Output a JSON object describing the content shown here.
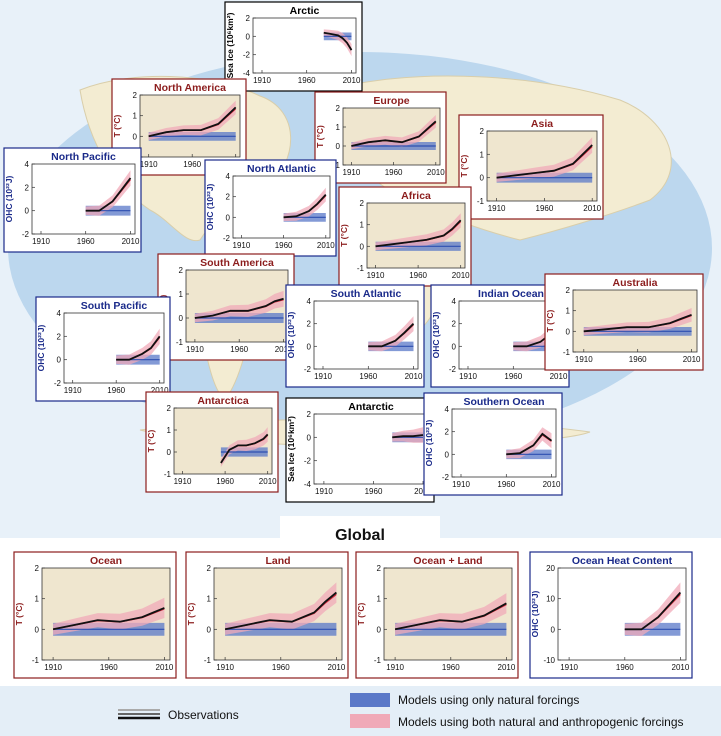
{
  "global_title": "Global",
  "legend": {
    "observations": "Observations",
    "natural": "Models using only natural forcings",
    "both": "Models using both natural and anthropogenic forcings"
  },
  "colors": {
    "ocean": "#bcd7ee",
    "land": "#f3ecd2",
    "temp_frame": "#8c1d1d",
    "ohc_frame": "#1a2a8a",
    "ice_frame": "#000000",
    "panel_bg_temp": "#efe6cf",
    "natural_band": "#5a78c8",
    "both_band": "#f0a9b8",
    "obs": "#111111"
  },
  "chart_data": [
    {
      "id": "arctic",
      "title": "Arctic",
      "type": "line",
      "ylabel": "Sea Ice (10⁶km²)",
      "yticks": [
        "2",
        "0",
        "-2",
        "-4"
      ],
      "ylim": [
        -4,
        2
      ],
      "xticks": [
        "1910",
        "1960",
        "2010"
      ],
      "series": [
        {
          "name": "obs",
          "x": [
            1979,
            1985,
            1990,
            1995,
            2000,
            2005,
            2010
          ],
          "values": [
            0.4,
            0.3,
            0.2,
            0.1,
            -0.2,
            -0.7,
            -1.5
          ]
        }
      ]
    },
    {
      "id": "north-america",
      "title": "North America",
      "type": "line",
      "ylabel": "T (°C)",
      "yticks": [
        "2",
        "1",
        "0",
        "-1"
      ],
      "ylim": [
        -1,
        2
      ],
      "xticks": [
        "1910",
        "1960",
        "2010"
      ],
      "series": [
        {
          "name": "obs",
          "x": [
            1910,
            1930,
            1950,
            1970,
            1990,
            2000,
            2010
          ],
          "values": [
            0.0,
            0.2,
            0.3,
            0.3,
            0.6,
            1.0,
            1.4
          ]
        }
      ]
    },
    {
      "id": "europe",
      "title": "Europe",
      "type": "line",
      "ylabel": "T (°C)",
      "yticks": [
        "2",
        "1",
        "0",
        "-1"
      ],
      "ylim": [
        -1,
        2
      ],
      "xticks": [
        "1910",
        "1960",
        "2010"
      ],
      "series": [
        {
          "name": "obs",
          "x": [
            1910,
            1930,
            1950,
            1970,
            1990,
            2000,
            2010
          ],
          "values": [
            0.0,
            0.2,
            0.3,
            0.2,
            0.5,
            0.9,
            1.3
          ]
        }
      ]
    },
    {
      "id": "asia",
      "title": "Asia",
      "type": "line",
      "ylabel": "T (°C)",
      "yticks": [
        "2",
        "1",
        "0",
        "-1"
      ],
      "ylim": [
        -1,
        2
      ],
      "xticks": [
        "1910",
        "1960",
        "2010"
      ],
      "series": [
        {
          "name": "obs",
          "x": [
            1910,
            1930,
            1950,
            1970,
            1990,
            2000,
            2010
          ],
          "values": [
            0.0,
            0.1,
            0.2,
            0.3,
            0.6,
            1.0,
            1.4
          ]
        }
      ]
    },
    {
      "id": "north-pacific",
      "title": "North Pacific",
      "type": "line",
      "ylabel": "OHC (10²²J)",
      "yticks": [
        "4",
        "2",
        "0",
        "-2"
      ],
      "ylim": [
        -2,
        4
      ],
      "xticks": [
        "1910",
        "1960",
        "2010"
      ],
      "series": [
        {
          "name": "obs",
          "x": [
            1960,
            1975,
            1990,
            2000,
            2010
          ],
          "values": [
            0.0,
            0.0,
            0.8,
            1.8,
            2.8
          ]
        }
      ]
    },
    {
      "id": "north-atlantic",
      "title": "North Atlantic",
      "type": "line",
      "ylabel": "OHC (10²²J)",
      "yticks": [
        "4",
        "2",
        "0",
        "-2"
      ],
      "ylim": [
        -2,
        4
      ],
      "xticks": [
        "1910",
        "1960",
        "2010"
      ],
      "series": [
        {
          "name": "obs",
          "x": [
            1960,
            1975,
            1990,
            2000,
            2010
          ],
          "values": [
            0.0,
            0.1,
            0.6,
            1.3,
            2.2
          ]
        }
      ]
    },
    {
      "id": "africa",
      "title": "Africa",
      "type": "line",
      "ylabel": "T (°C)",
      "yticks": [
        "2",
        "1",
        "0",
        "-1"
      ],
      "ylim": [
        -1,
        2
      ],
      "xticks": [
        "1910",
        "1960",
        "2010"
      ],
      "series": [
        {
          "name": "obs",
          "x": [
            1910,
            1930,
            1950,
            1970,
            1990,
            2000,
            2010
          ],
          "values": [
            0.0,
            0.1,
            0.2,
            0.3,
            0.5,
            0.8,
            1.2
          ]
        }
      ]
    },
    {
      "id": "south-america",
      "title": "South America",
      "type": "line",
      "ylabel": "T (°C)",
      "yticks": [
        "2",
        "1",
        "0",
        "-1"
      ],
      "ylim": [
        -1,
        2
      ],
      "xticks": [
        "1910",
        "1960",
        "2010"
      ],
      "series": [
        {
          "name": "obs",
          "x": [
            1910,
            1930,
            1950,
            1970,
            1990,
            2000,
            2010
          ],
          "values": [
            0.0,
            0.1,
            0.3,
            0.3,
            0.5,
            0.7,
            0.8
          ]
        }
      ]
    },
    {
      "id": "south-pacific",
      "title": "South Pacific",
      "type": "line",
      "ylabel": "OHC (10²²J)",
      "yticks": [
        "4",
        "2",
        "0",
        "-2"
      ],
      "ylim": [
        -2,
        4
      ],
      "xticks": [
        "1910",
        "1960",
        "2010"
      ],
      "series": [
        {
          "name": "obs",
          "x": [
            1960,
            1975,
            1990,
            2000,
            2010
          ],
          "values": [
            0.0,
            0.0,
            0.5,
            1.0,
            2.0
          ]
        }
      ]
    },
    {
      "id": "south-atlantic",
      "title": "South Atlantic",
      "type": "line",
      "ylabel": "OHC (10²²J)",
      "yticks": [
        "4",
        "2",
        "0",
        "-2"
      ],
      "ylim": [
        -2,
        4
      ],
      "xticks": [
        "1910",
        "1960",
        "2010"
      ],
      "series": [
        {
          "name": "obs",
          "x": [
            1960,
            1975,
            1990,
            2000,
            2010
          ],
          "values": [
            0.0,
            0.0,
            0.5,
            1.2,
            2.0
          ]
        }
      ]
    },
    {
      "id": "indian-ocean",
      "title": "Indian Ocean",
      "type": "line",
      "ylabel": "OHC (10²²J)",
      "yticks": [
        "4",
        "2",
        "0",
        "-2"
      ],
      "ylim": [
        -2,
        4
      ],
      "xticks": [
        "1910",
        "1960",
        "2010"
      ],
      "series": [
        {
          "name": "obs",
          "x": [
            1960,
            1975,
            1990,
            2000,
            2010
          ],
          "values": [
            0.0,
            0.0,
            0.4,
            1.0,
            1.8
          ]
        }
      ]
    },
    {
      "id": "australia",
      "title": "Australia",
      "type": "line",
      "ylabel": "T (°C)",
      "yticks": [
        "2",
        "1",
        "0",
        "-1"
      ],
      "ylim": [
        -1,
        2
      ],
      "xticks": [
        "1910",
        "1960",
        "2010"
      ],
      "series": [
        {
          "name": "obs",
          "x": [
            1910,
            1930,
            1950,
            1970,
            1990,
            2000,
            2010
          ],
          "values": [
            0.0,
            0.1,
            0.2,
            0.2,
            0.4,
            0.6,
            0.8
          ]
        }
      ]
    },
    {
      "id": "antarctica",
      "title": "Antarctica",
      "type": "line",
      "ylabel": "T (°C)",
      "yticks": [
        "2",
        "1",
        "0",
        "-1"
      ],
      "ylim": [
        -1,
        2
      ],
      "xticks": [
        "1910",
        "1960",
        "2010"
      ],
      "series": [
        {
          "name": "obs",
          "x": [
            1955,
            1965,
            1975,
            1985,
            1995,
            2005,
            2010
          ],
          "values": [
            -0.5,
            0.1,
            0.3,
            0.3,
            0.4,
            0.6,
            0.8
          ]
        }
      ]
    },
    {
      "id": "antarctic",
      "title": "Antarctic",
      "type": "line",
      "ylabel": "Sea Ice (10⁶km²)",
      "yticks": [
        "2",
        "0",
        "-2",
        "-4"
      ],
      "ylim": [
        -4,
        2
      ],
      "xticks": [
        "1910",
        "1960",
        "2010"
      ],
      "series": [
        {
          "name": "obs",
          "x": [
            1979,
            1990,
            2000,
            2010
          ],
          "values": [
            0.0,
            0.1,
            0.1,
            0.2
          ]
        }
      ]
    },
    {
      "id": "southern-ocean",
      "title": "Southern Ocean",
      "type": "line",
      "ylabel": "OHC (10²²J)",
      "yticks": [
        "4",
        "2",
        "0",
        "-2"
      ],
      "ylim": [
        -2,
        4
      ],
      "xticks": [
        "1910",
        "1960",
        "2010"
      ],
      "series": [
        {
          "name": "obs",
          "x": [
            1960,
            1975,
            1990,
            2000,
            2010
          ],
          "values": [
            0.0,
            0.1,
            0.8,
            1.8,
            1.2
          ]
        }
      ]
    },
    {
      "id": "global-ocean",
      "title": "Ocean",
      "type": "line",
      "ylabel": "T (°C)",
      "yticks": [
        "2",
        "1",
        "0",
        "-1"
      ],
      "ylim": [
        -1,
        2
      ],
      "xticks": [
        "1910",
        "1960",
        "2010"
      ],
      "series": [
        {
          "name": "obs",
          "x": [
            1910,
            1930,
            1950,
            1970,
            1990,
            2000,
            2010
          ],
          "values": [
            0.0,
            0.15,
            0.3,
            0.25,
            0.4,
            0.55,
            0.7
          ]
        }
      ]
    },
    {
      "id": "global-land",
      "title": "Land",
      "type": "line",
      "ylabel": "T (°C)",
      "yticks": [
        "2",
        "1",
        "0",
        "-1"
      ],
      "ylim": [
        -1,
        2
      ],
      "xticks": [
        "1910",
        "1960",
        "2010"
      ],
      "series": [
        {
          "name": "obs",
          "x": [
            1910,
            1930,
            1950,
            1970,
            1990,
            2000,
            2010
          ],
          "values": [
            0.0,
            0.15,
            0.3,
            0.25,
            0.55,
            0.9,
            1.2
          ]
        }
      ]
    },
    {
      "id": "global-ocean-land",
      "title": "Ocean + Land",
      "type": "line",
      "ylabel": "T (°C)",
      "yticks": [
        "2",
        "1",
        "0",
        "-1"
      ],
      "ylim": [
        -1,
        2
      ],
      "xticks": [
        "1910",
        "1960",
        "2010"
      ],
      "series": [
        {
          "name": "obs",
          "x": [
            1910,
            1930,
            1950,
            1970,
            1990,
            2000,
            2010
          ],
          "values": [
            0.0,
            0.15,
            0.3,
            0.25,
            0.45,
            0.65,
            0.85
          ]
        }
      ]
    },
    {
      "id": "global-ohc",
      "title": "Ocean Heat Content",
      "type": "line",
      "ylabel": "OHC (10²²J)",
      "yticks": [
        "20",
        "10",
        "0",
        "-10"
      ],
      "ylim": [
        -10,
        20
      ],
      "xticks": [
        "1910",
        "1960",
        "2010"
      ],
      "series": [
        {
          "name": "obs",
          "x": [
            1960,
            1975,
            1990,
            2000,
            2010
          ],
          "values": [
            0.0,
            0.0,
            4.0,
            8.0,
            12.0
          ]
        }
      ]
    }
  ]
}
